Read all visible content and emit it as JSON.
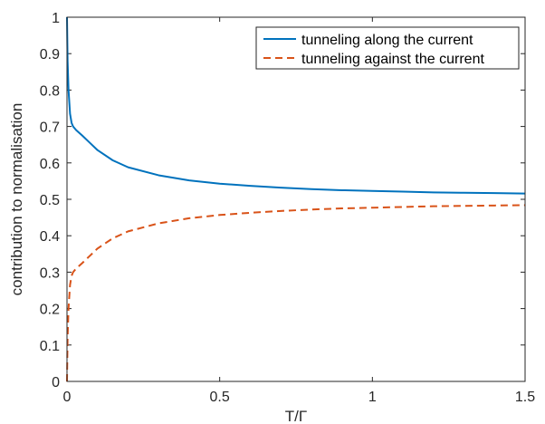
{
  "chart_data": {
    "type": "line",
    "title": "",
    "xlabel": "T/Γ",
    "ylabel": "contribution to normalisation",
    "xlim": [
      0,
      1.5
    ],
    "ylim": [
      0,
      1
    ],
    "xticks": [
      0,
      0.5,
      1,
      1.5
    ],
    "xtick_labels": [
      "0",
      "0.5",
      "1",
      "1.5"
    ],
    "yticks": [
      0,
      0.1,
      0.2,
      0.3,
      0.4,
      0.5,
      0.6,
      0.7,
      0.8,
      0.9,
      1
    ],
    "ytick_labels": [
      "0",
      "0.1",
      "0.2",
      "0.3",
      "0.4",
      "0.5",
      "0.6",
      "0.7",
      "0.8",
      "0.9",
      "1"
    ],
    "grid": false,
    "legend_position": "top-right",
    "series": [
      {
        "name": "tunneling along the current",
        "color": "#0072BD",
        "dash": "solid",
        "x": [
          0,
          0.002,
          0.005,
          0.01,
          0.015,
          0.02,
          0.03,
          0.05,
          0.075,
          0.1,
          0.15,
          0.2,
          0.3,
          0.4,
          0.5,
          0.6,
          0.7,
          0.8,
          0.9,
          1.0,
          1.1,
          1.2,
          1.3,
          1.4,
          1.5
        ],
        "y": [
          1.0,
          0.88,
          0.8,
          0.735,
          0.71,
          0.7,
          0.69,
          0.675,
          0.655,
          0.635,
          0.607,
          0.588,
          0.566,
          0.552,
          0.543,
          0.537,
          0.532,
          0.528,
          0.525,
          0.523,
          0.521,
          0.519,
          0.518,
          0.517,
          0.516
        ]
      },
      {
        "name": "tunneling against the current",
        "color": "#D95319",
        "dash": "dashed",
        "x": [
          0,
          0.002,
          0.005,
          0.01,
          0.015,
          0.02,
          0.03,
          0.05,
          0.075,
          0.1,
          0.15,
          0.2,
          0.3,
          0.4,
          0.5,
          0.6,
          0.7,
          0.8,
          0.9,
          1.0,
          1.1,
          1.2,
          1.3,
          1.4,
          1.5
        ],
        "y": [
          0.0,
          0.12,
          0.2,
          0.265,
          0.29,
          0.3,
          0.31,
          0.325,
          0.345,
          0.365,
          0.393,
          0.412,
          0.434,
          0.448,
          0.457,
          0.463,
          0.468,
          0.472,
          0.475,
          0.477,
          0.479,
          0.481,
          0.482,
          0.483,
          0.484
        ]
      }
    ]
  }
}
